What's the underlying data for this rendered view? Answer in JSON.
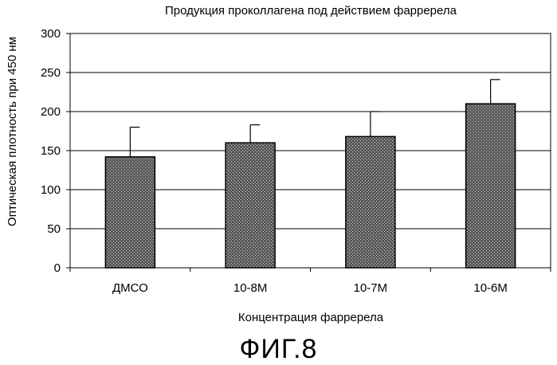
{
  "figure_label": "ФИГ.8",
  "chart_data": {
    "type": "bar",
    "title": "Продукция проколлагена под действием фарререла",
    "xlabel": "Концентрация фарререла",
    "ylabel": "Оптическая плотность при 450 нм",
    "categories": [
      "ДМСО",
      "10-8M",
      "10-7M",
      "10-6M"
    ],
    "values": [
      142,
      160,
      168,
      210
    ],
    "error_upper": [
      180,
      183,
      200,
      241
    ],
    "ylim": [
      0,
      300
    ],
    "yticks": [
      0,
      50,
      100,
      150,
      200,
      250,
      300
    ],
    "grid": true,
    "legend": "none"
  }
}
